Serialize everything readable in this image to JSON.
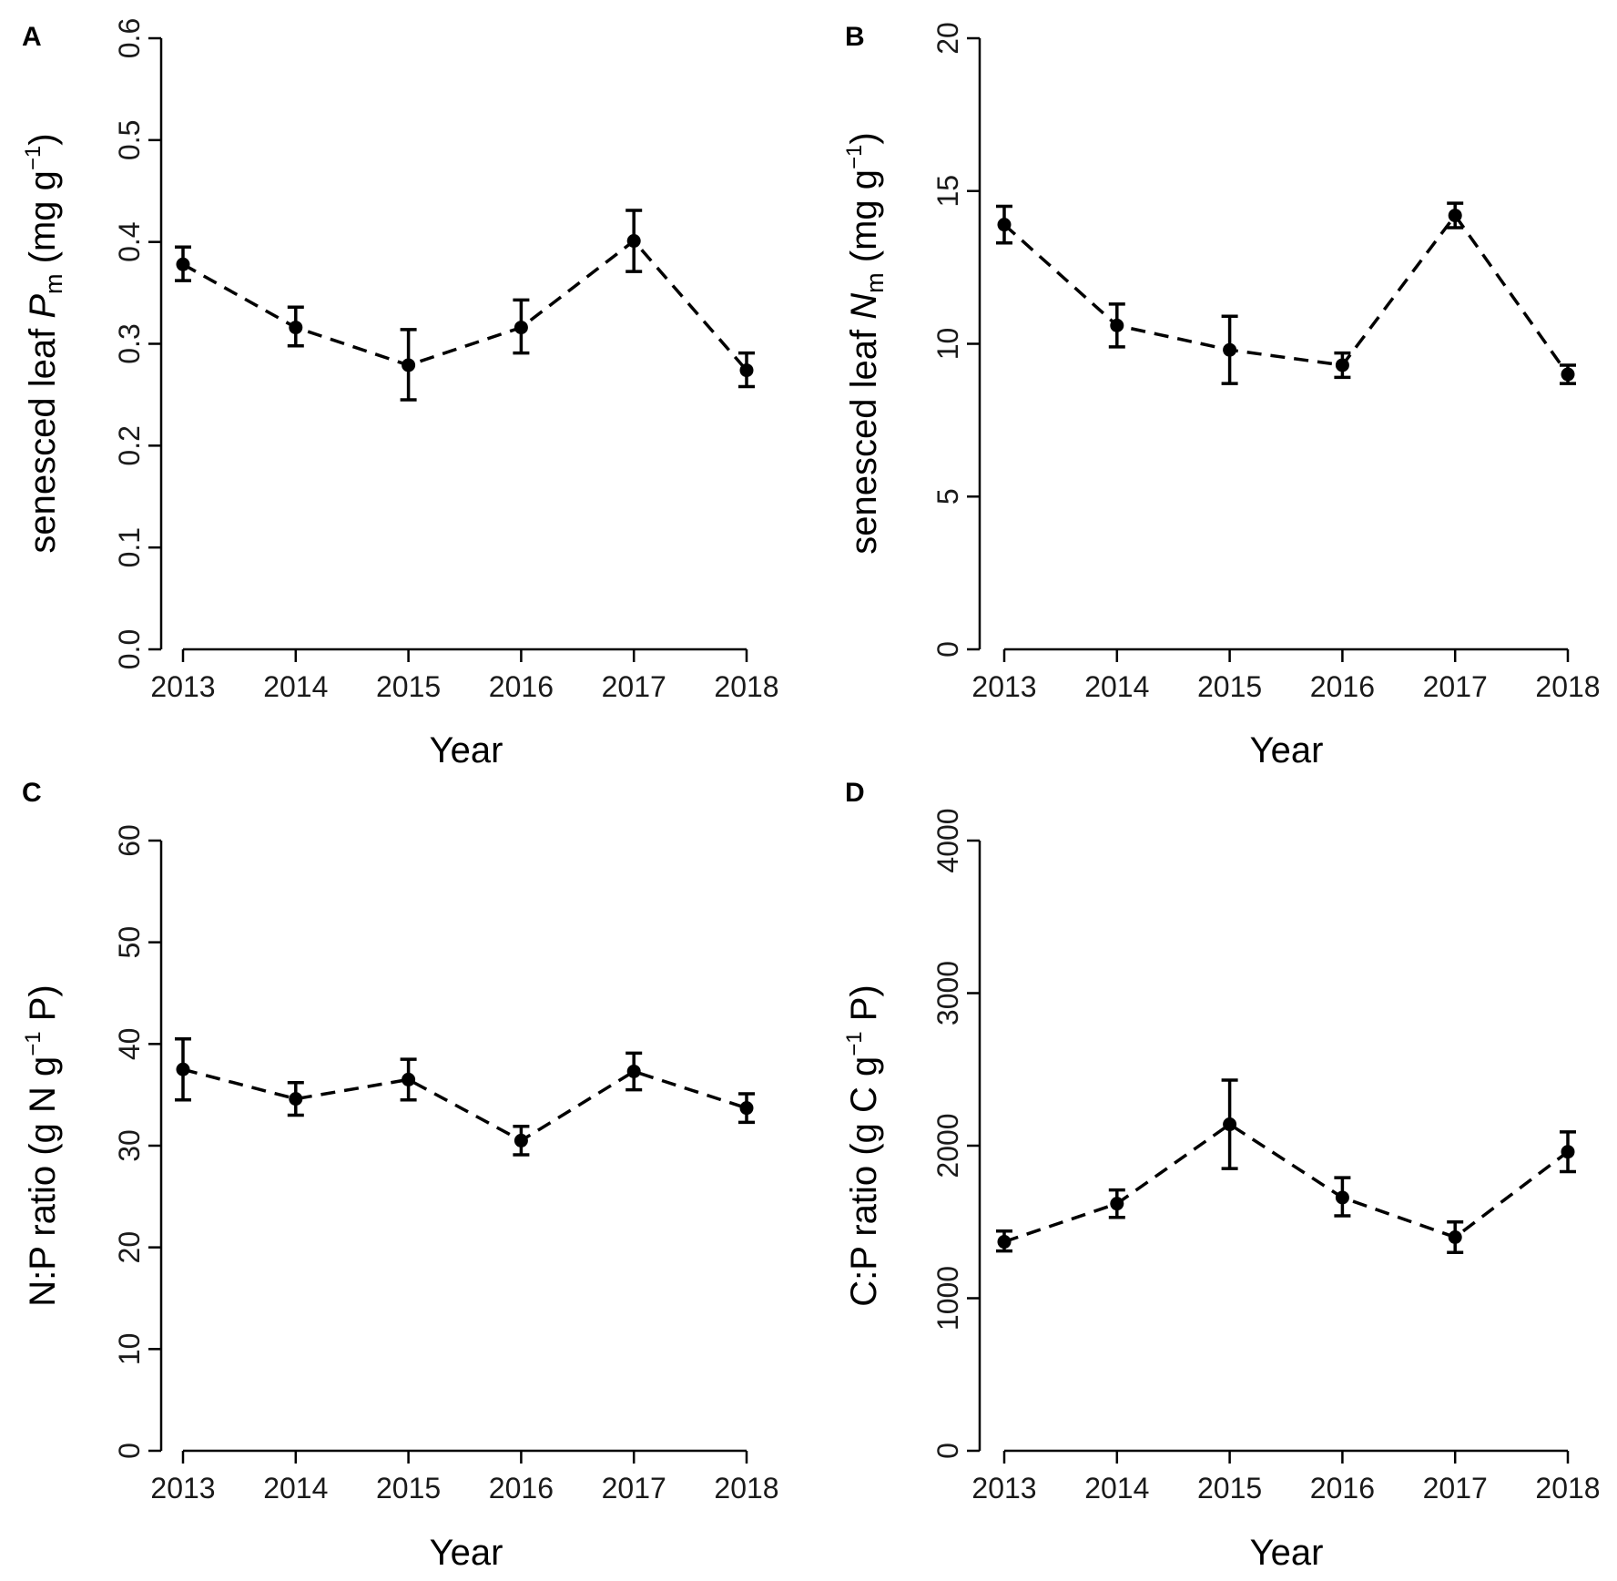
{
  "chart_data": [
    {
      "panel": "A",
      "type": "line",
      "x": [
        "2013",
        "2014",
        "2015",
        "2016",
        "2017",
        "2018"
      ],
      "values": [
        0.378,
        0.316,
        0.279,
        0.316,
        0.401,
        0.274
      ],
      "err_low": [
        0.362,
        0.298,
        0.245,
        0.291,
        0.371,
        0.258
      ],
      "err_high": [
        0.395,
        0.336,
        0.314,
        0.343,
        0.431,
        0.291
      ],
      "xlabel": "Year",
      "ylabel": {
        "pre": "senesced leaf ",
        "var": "P",
        "sub": "m",
        "unit": " (mg g",
        "sup": "−1",
        "close": ")"
      },
      "ylim": [
        0,
        0.6
      ],
      "yticks": [
        "0.0",
        "0.1",
        "0.2",
        "0.3",
        "0.4",
        "0.5",
        "0.6"
      ]
    },
    {
      "panel": "B",
      "type": "line",
      "x": [
        "2013",
        "2014",
        "2015",
        "2016",
        "2017",
        "2018"
      ],
      "values": [
        13.9,
        10.6,
        9.8,
        9.3,
        14.2,
        9.0
      ],
      "err_low": [
        13.3,
        9.9,
        8.7,
        8.9,
        13.8,
        8.7
      ],
      "err_high": [
        14.5,
        11.3,
        10.9,
        9.7,
        14.6,
        9.3
      ],
      "xlabel": "Year",
      "ylabel": {
        "pre": "senesced leaf ",
        "var": "N",
        "sub": "m",
        "unit": " (mg g",
        "sup": "−1",
        "close": ")"
      },
      "ylim": [
        0,
        20
      ],
      "yticks": [
        "0",
        "5",
        "10",
        "15",
        "20"
      ]
    },
    {
      "panel": "C",
      "type": "line",
      "x": [
        "2013",
        "2014",
        "2015",
        "2016",
        "2017",
        "2018"
      ],
      "values": [
        37.5,
        34.6,
        36.5,
        30.5,
        37.3,
        33.7
      ],
      "err_low": [
        34.5,
        33.0,
        34.5,
        29.1,
        35.5,
        32.3
      ],
      "err_high": [
        40.5,
        36.2,
        38.5,
        31.9,
        39.1,
        35.1
      ],
      "xlabel": "Year",
      "ylabel": {
        "pre": "N:P ratio (g N g",
        "var": "",
        "sub": "",
        "unit": "",
        "sup": "−1",
        "close": " P)"
      },
      "ylim": [
        0,
        60
      ],
      "yticks": [
        "0",
        "10",
        "20",
        "30",
        "40",
        "50",
        "60"
      ]
    },
    {
      "panel": "D",
      "type": "line",
      "x": [
        "2013",
        "2014",
        "2015",
        "2016",
        "2017",
        "2018"
      ],
      "values": [
        1370,
        1620,
        2140,
        1660,
        1400,
        1960
      ],
      "err_low": [
        1310,
        1530,
        1850,
        1540,
        1300,
        1830
      ],
      "err_high": [
        1440,
        1710,
        2430,
        1790,
        1500,
        2090
      ],
      "xlabel": "Year",
      "ylabel": {
        "pre": "C:P ratio (g C g",
        "var": "",
        "sub": "",
        "unit": "",
        "sup": "−1",
        "close": " P)"
      },
      "ylim": [
        0,
        4000
      ],
      "yticks": [
        "0",
        "1000",
        "2000",
        "3000",
        "4000"
      ]
    }
  ]
}
